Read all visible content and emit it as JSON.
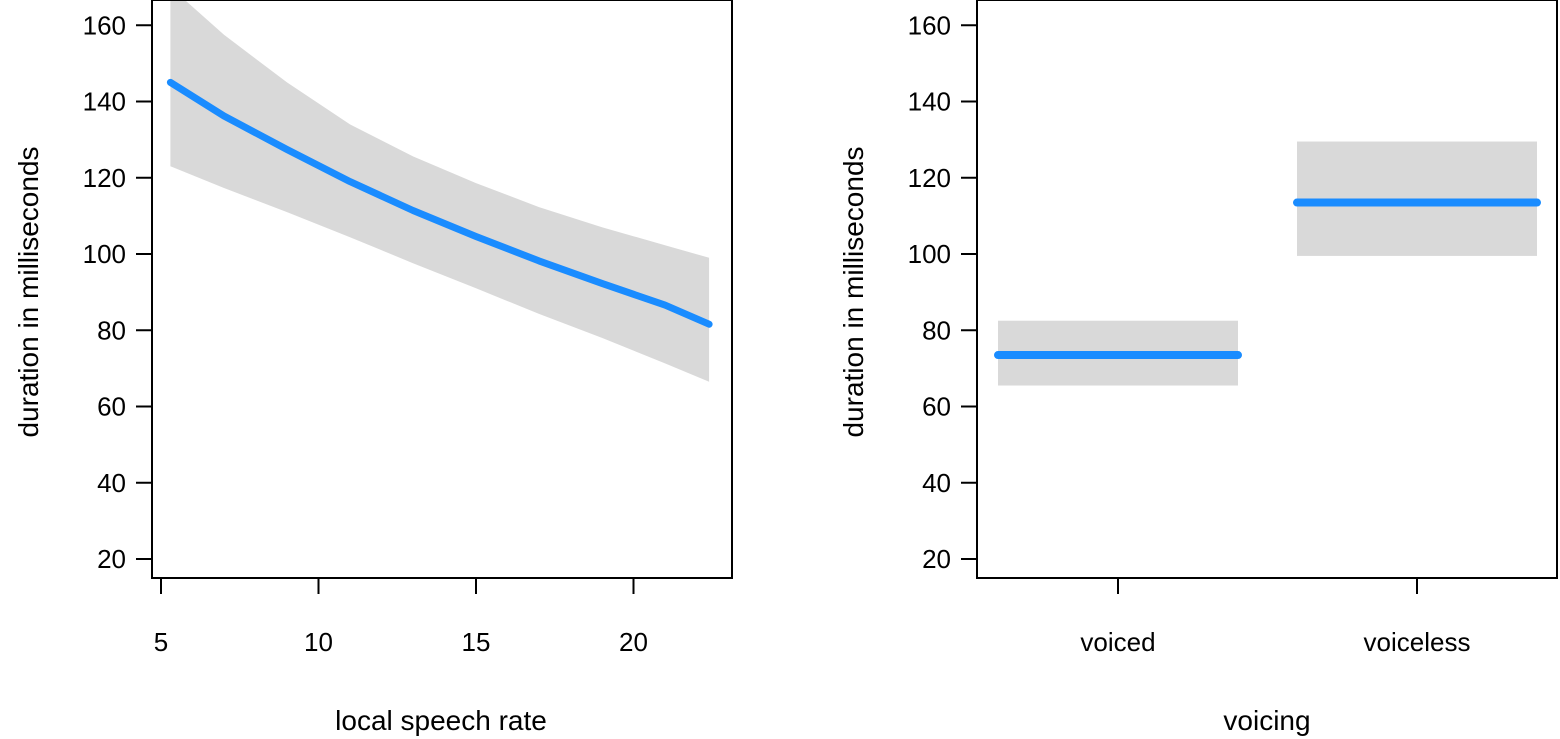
{
  "colors": {
    "line": "#1a8cff",
    "band": "#d9d9d9",
    "frame": "#000000",
    "background": "#ffffff"
  },
  "chart_data": [
    {
      "type": "line",
      "title": "",
      "xlabel": "local speech rate",
      "ylabel": "duration in milliseconds",
      "xlim": [
        5,
        23
      ],
      "ylim": [
        14,
        164
      ],
      "xticks": [
        5,
        10,
        15,
        20
      ],
      "yticks": [
        20,
        40,
        60,
        80,
        100,
        120,
        140,
        160
      ],
      "grid": false,
      "legend": "none",
      "series": [
        {
          "x": [
            5.3,
            7,
            9,
            11,
            13,
            15,
            17,
            19,
            21,
            22.4
          ],
          "y": [
            145,
            136.2,
            127.4,
            119,
            111.4,
            104.6,
            98.2,
            92.3,
            86.6,
            81.6
          ],
          "lower": [
            123,
            117.3,
            111,
            104.4,
            97.6,
            91,
            84.3,
            78,
            71.3,
            66.5
          ],
          "upper": [
            170,
            157.5,
            145,
            134,
            125.6,
            118.6,
            112.3,
            107,
            102.3,
            99
          ]
        }
      ]
    },
    {
      "type": "line",
      "title": "",
      "xlabel": "voicing",
      "ylabel": "duration in milliseconds",
      "categories": [
        "voiced",
        "voiceless"
      ],
      "ylim": [
        14,
        164
      ],
      "yticks": [
        20,
        40,
        60,
        80,
        100,
        120,
        140,
        160
      ],
      "grid": false,
      "legend": "none",
      "series": [
        {
          "values": [
            73.5,
            113.5
          ],
          "lower": [
            65.5,
            99.5
          ],
          "upper": [
            82.5,
            129.5
          ]
        }
      ]
    }
  ]
}
